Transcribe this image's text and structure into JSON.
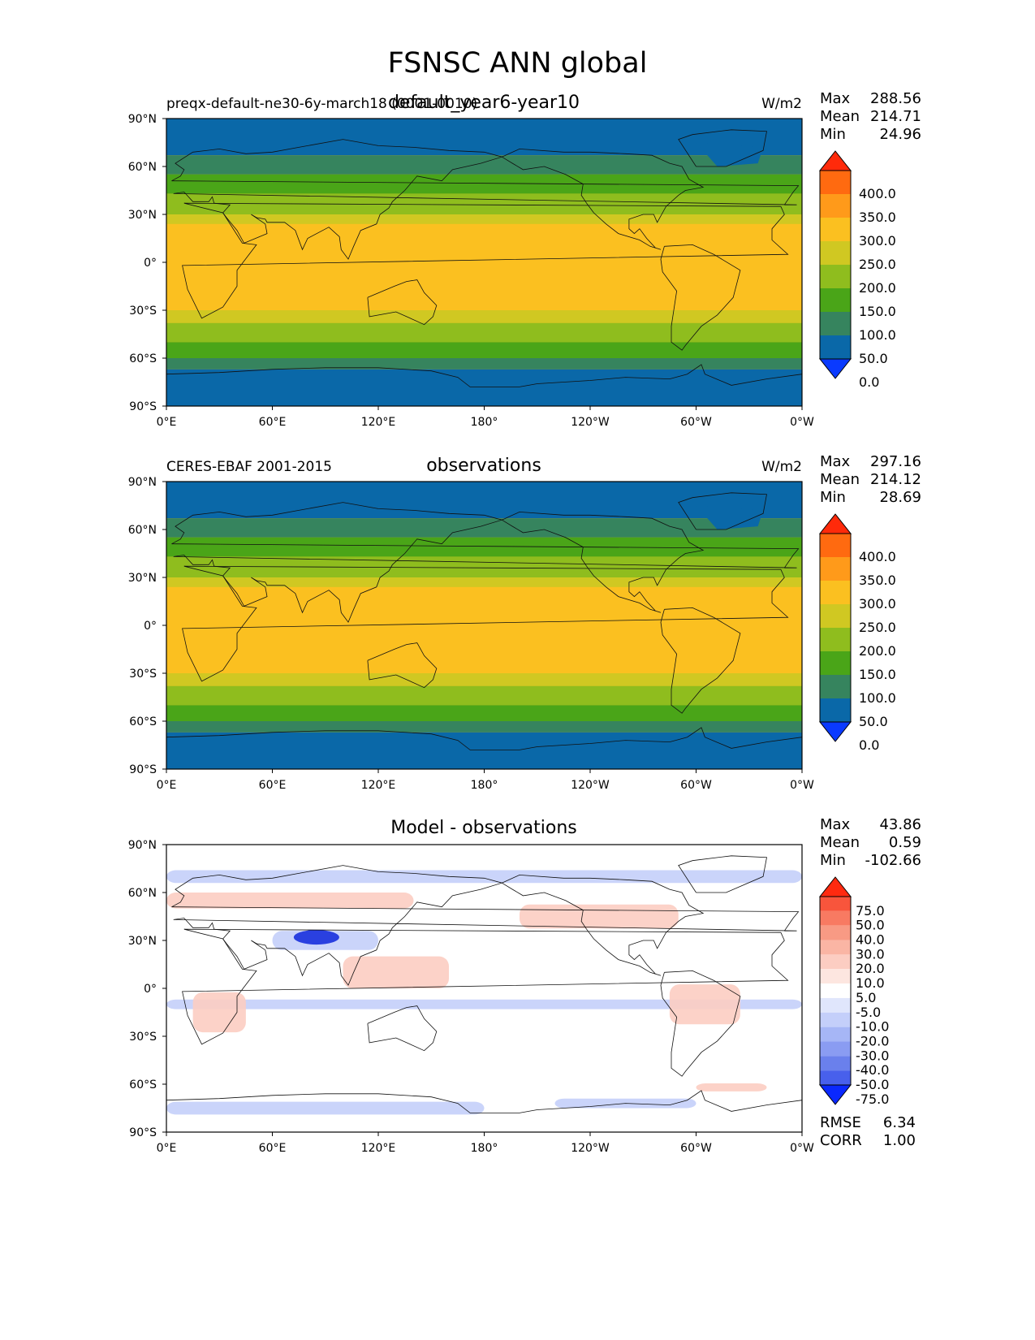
{
  "figure_title": "FSNSC ANN global",
  "panels": [
    {
      "id": "test",
      "title": "default_year6-year10",
      "left_label": "preqx-default-ne30-6y-march18 (0001-0010)",
      "units": "W/m2",
      "stats": [
        {
          "label": "Max",
          "value": "288.56"
        },
        {
          "label": "Mean",
          "value": "214.71"
        },
        {
          "label": "Min",
          "value": "24.96"
        }
      ]
    },
    {
      "id": "reference",
      "title": "observations",
      "left_label": "CERES-EBAF 2001-2015",
      "units": "W/m2",
      "stats": [
        {
          "label": "Max",
          "value": "297.16"
        },
        {
          "label": "Mean",
          "value": "214.12"
        },
        {
          "label": "Min",
          "value": "28.69"
        }
      ]
    },
    {
      "id": "diff",
      "title": "Model - observations",
      "left_label": "",
      "units": "",
      "stats": [
        {
          "label": "Max",
          "value": "43.86"
        },
        {
          "label": "Mean",
          "value": "0.59"
        },
        {
          "label": "Min",
          "value": "-102.66"
        }
      ],
      "metrics": [
        {
          "label": "RMSE",
          "value": "6.34"
        },
        {
          "label": "CORR",
          "value": "1.00"
        }
      ]
    }
  ],
  "axes": {
    "lat_ticks": [
      "90°N",
      "60°N",
      "30°N",
      "0°",
      "30°S",
      "60°S",
      "90°S"
    ],
    "lon_ticks": [
      "0°E",
      "60°E",
      "120°E",
      "180°",
      "120°W",
      "60°W",
      "0°W"
    ]
  },
  "colorbar_main": {
    "labels": [
      "400.0",
      "350.0",
      "300.0",
      "250.0",
      "200.0",
      "150.0",
      "100.0",
      "50.0",
      "0.0"
    ],
    "colors": [
      "#ff2a0a",
      "#ff6a10",
      "#ff9a1a",
      "#fbc020",
      "#d0c822",
      "#8fbd1e",
      "#4aa518",
      "#36845e",
      "#0a68a8",
      "#0a3aff"
    ]
  },
  "colorbar_diff": {
    "labels": [
      "75.0",
      "50.0",
      "40.0",
      "30.0",
      "20.0",
      "10.0",
      "5.0",
      "-5.0",
      "-10.0",
      "-20.0",
      "-30.0",
      "-40.0",
      "-50.0",
      "-75.0"
    ],
    "colors": [
      "#ff2a10",
      "#f8553c",
      "#f87a62",
      "#f89a84",
      "#fab5a4",
      "#fccdc2",
      "#fde6e0",
      "#ffffff",
      "#e0e6fc",
      "#c4cffa",
      "#a6b6f6",
      "#8a9cf2",
      "#6a80ec",
      "#4860ec",
      "#0a28ff"
    ]
  },
  "field_colors": {
    "polar": "#0a68a8",
    "subpolar": "#36845e",
    "midlat": "#4aa518",
    "warmtemperate": "#8fbd1e",
    "subtropic": "#d0c822",
    "tropic": "#fbc020",
    "diff_bg": "#ffffff",
    "diff_pos": "#fccdc2",
    "diff_neg": "#c4cffa",
    "diff_strong_neg": "#2a40e0"
  }
}
